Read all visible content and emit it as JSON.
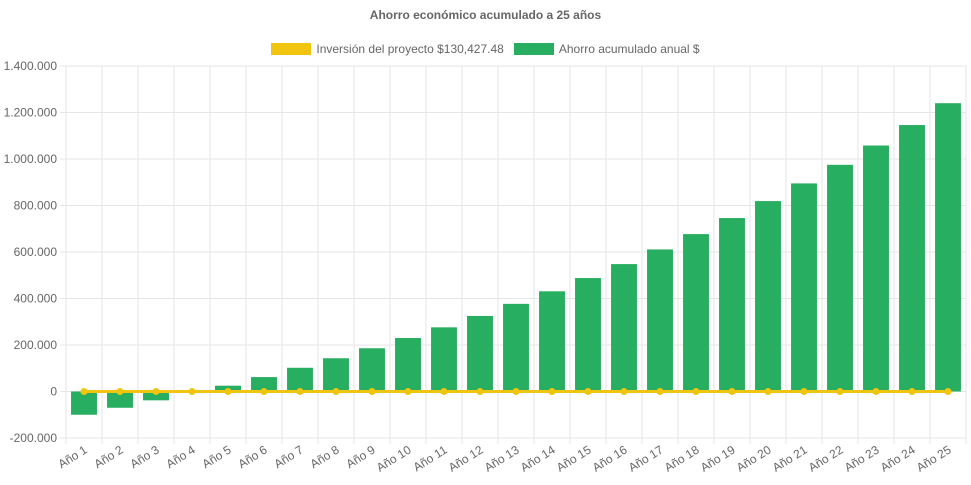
{
  "chart_data": {
    "type": "bar",
    "title": "Ahorro económico acumulado a 25 años",
    "categories": [
      "Año 1",
      "Año 2",
      "Año 3",
      "Año 4",
      "Año 5",
      "Año 6",
      "Año 7",
      "Año 8",
      "Año 9",
      "Año 10",
      "Año 11",
      "Año 12",
      "Año 13",
      "Año 14",
      "Año 15",
      "Año 16",
      "Año 17",
      "Año 18",
      "Año 19",
      "Año 20",
      "Año 21",
      "Año 22",
      "Año 23",
      "Año 24",
      "Año 25"
    ],
    "series": [
      {
        "name": "Inversión del proyecto $130,427.48",
        "type": "line",
        "color": "#f1c40f",
        "values": [
          0,
          0,
          0,
          0,
          0,
          0,
          0,
          0,
          0,
          0,
          0,
          0,
          0,
          0,
          0,
          0,
          0,
          0,
          0,
          0,
          0,
          0,
          0,
          0,
          0
        ]
      },
      {
        "name": "Ahorro acumulado anual $",
        "type": "bar",
        "color": "#27ae60",
        "values": [
          -100000,
          -70000,
          -38000,
          -3000,
          25000,
          62000,
          102000,
          143000,
          186000,
          230000,
          276000,
          325000,
          377000,
          431000,
          488000,
          548000,
          611000,
          677000,
          746000,
          819000,
          895000,
          975000,
          1058000,
          1146000,
          1240000
        ]
      }
    ],
    "ylim": [
      -200000,
      1400000
    ],
    "yticks": [
      "1.400.000",
      "1.200.000",
      "1.000.000",
      "800.000",
      "600.000",
      "400.000",
      "200.000",
      "0",
      "-200.000"
    ],
    "ytick_values": [
      1400000,
      1200000,
      1000000,
      800000,
      600000,
      400000,
      200000,
      0,
      -200000
    ],
    "grid": true,
    "legend_position": "top"
  }
}
